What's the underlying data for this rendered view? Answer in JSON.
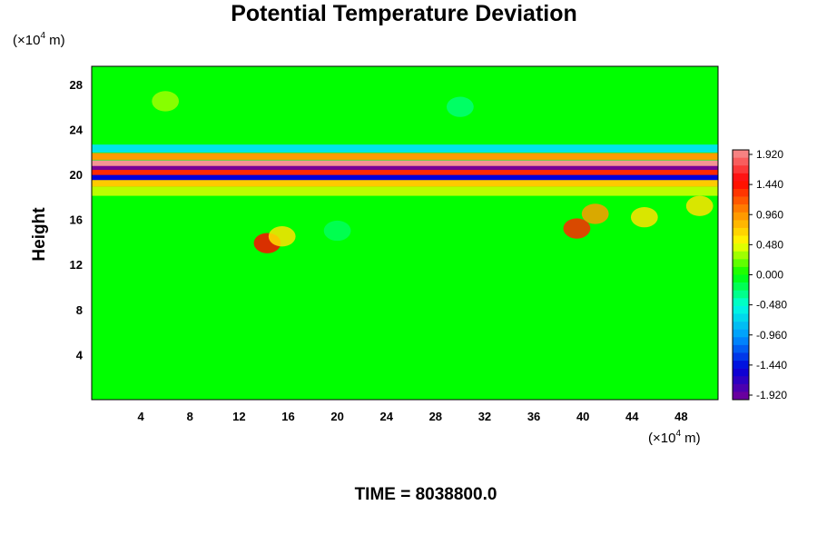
{
  "chart_data": {
    "type": "heatmap",
    "title": "Potential Temperature Deviation",
    "xlabel": "",
    "ylabel": "Height",
    "x_unit": {
      "prefix": "(×10",
      "exp": "4",
      "suffix": " m)"
    },
    "y_unit": {
      "prefix": "(×10",
      "exp": "4",
      "suffix": " m)"
    },
    "xlim": [
      0,
      51
    ],
    "ylim": [
      0,
      29.6
    ],
    "x_ticks": [
      4,
      8,
      12,
      16,
      20,
      24,
      28,
      32,
      36,
      40,
      44,
      48
    ],
    "y_ticks": [
      4,
      8,
      12,
      16,
      20,
      24,
      28
    ],
    "grid": false,
    "colorbar": {
      "min": -1.92,
      "max": 1.92,
      "step": 0.12,
      "tick_labels": [
        "1.920",
        "1.440",
        "0.960",
        "0.480",
        "0.000",
        "-0.480",
        "-0.960",
        "-1.440",
        "-1.920"
      ],
      "colors": [
        "#f49494",
        "#ff0000",
        "#ff8c00",
        "#ffff00",
        "#00ff00",
        "#00ffe0",
        "#0096ff",
        "#0000dc",
        "#780096"
      ]
    },
    "background_value": 0.0,
    "bands": [
      {
        "y_center": 20.9,
        "half_width": 0.35,
        "value": 1.92
      },
      {
        "y_center": 20.5,
        "half_width": 0.25,
        "value": -1.92
      },
      {
        "y_center": 20.1,
        "half_width": 0.3,
        "value": 1.3
      },
      {
        "y_center": 19.7,
        "half_width": 0.25,
        "value": -1.44
      },
      {
        "y_center": 21.6,
        "half_width": 0.3,
        "value": 0.9
      },
      {
        "y_center": 22.3,
        "half_width": 0.35,
        "value": -0.6
      },
      {
        "y_center": 19.2,
        "half_width": 0.3,
        "value": 0.7
      },
      {
        "y_center": 18.5,
        "half_width": 0.4,
        "value": 0.35
      }
    ],
    "patches": [
      {
        "x": 14.3,
        "y": 13.9,
        "value": 1.4
      },
      {
        "x": 15.5,
        "y": 14.5,
        "value": 0.6
      },
      {
        "x": 39.5,
        "y": 15.2,
        "value": 1.3
      },
      {
        "x": 41,
        "y": 16.5,
        "value": 0.9
      },
      {
        "x": 45,
        "y": 16.2,
        "value": 0.6
      },
      {
        "x": 49.5,
        "y": 17.2,
        "value": 0.6
      },
      {
        "x": 6,
        "y": 26.5,
        "value": 0.3
      },
      {
        "x": 30,
        "y": 26,
        "value": -0.25
      },
      {
        "x": 20,
        "y": 15,
        "value": -0.2
      }
    ]
  },
  "footer": {
    "time_label": "TIME = 8038800.0"
  }
}
